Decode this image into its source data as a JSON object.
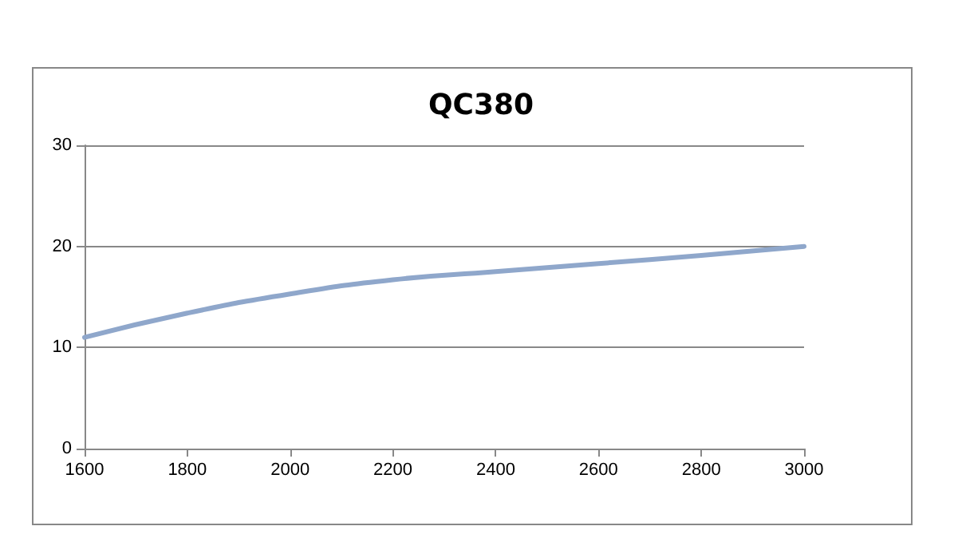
{
  "chart_data": {
    "type": "line",
    "title": "QC380",
    "x": [
      1600,
      1800,
      2000,
      2200,
      2400,
      2600,
      2800,
      3000
    ],
    "series": [
      {
        "color": "#8fa7cb",
        "values": [
          11.0,
          13.4,
          15.3,
          16.7,
          17.5,
          18.3,
          19.1,
          20.0
        ]
      }
    ],
    "xlim": [
      1600,
      3000
    ],
    "xticks": [
      1600,
      1800,
      2000,
      2200,
      2400,
      2600,
      2800,
      3000
    ],
    "ylim": [
      0,
      30
    ],
    "yticks": [
      0,
      10,
      20,
      30
    ],
    "grid": "y",
    "marker": "none",
    "line_style": "solid"
  }
}
